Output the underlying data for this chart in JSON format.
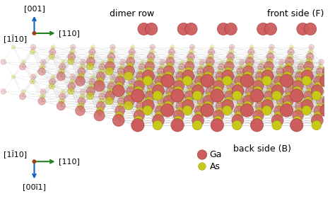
{
  "background_color": "#ffffff",
  "ga_color": "#cd5c5c",
  "ga_edge_color": "#8b2020",
  "as_color": "#c8c818",
  "as_edge_color": "#888800",
  "bond_color": "#999999",
  "bond_lw": 0.5,
  "top_label_110bar": "[1Ĩ10]",
  "top_label_dimer": "dimer row",
  "top_label_front": "front side (F)",
  "bottom_label_110bar": "[1Ĩ10]",
  "bottom_label_back": "back side (B)",
  "bottom_label_001bar": "[00ī1]",
  "label_001": "[001]",
  "label_110": "[110]",
  "font_size": 8,
  "font_size_side": 9,
  "arrow_color_blue": "#1060c0",
  "arrow_color_green": "#208020",
  "arrow_color_brown": "#a04010",
  "legend_ga_label": "Ga",
  "legend_as_label": "As"
}
